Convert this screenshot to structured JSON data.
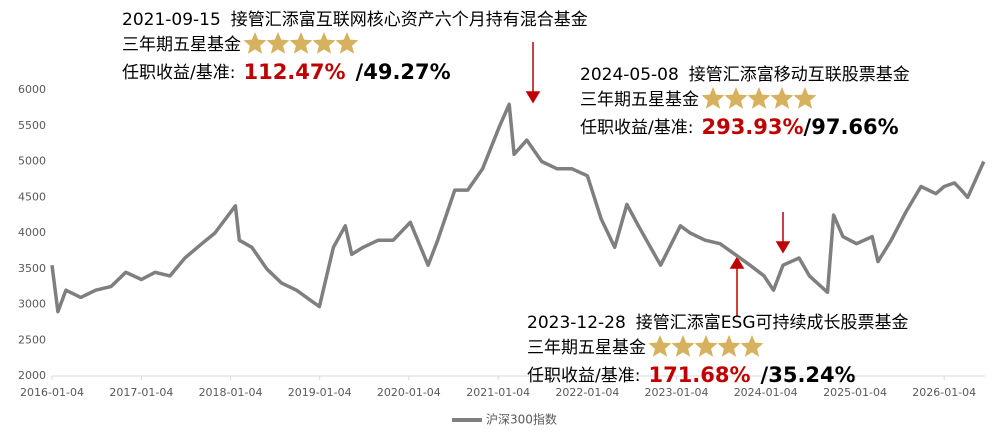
{
  "chart_data": {
    "type": "line",
    "x": [
      "2016-01-04",
      "2016-01-28",
      "2016-03-01",
      "2016-05-01",
      "2016-07-01",
      "2016-09-01",
      "2016-11-01",
      "2017-01-04",
      "2017-03-01",
      "2017-05-01",
      "2017-07-01",
      "2017-09-01",
      "2017-11-01",
      "2018-01-24",
      "2018-02-09",
      "2018-04-01",
      "2018-06-01",
      "2018-08-01",
      "2018-10-01",
      "2018-12-01",
      "2019-01-03",
      "2019-03-01",
      "2019-04-19",
      "2019-05-15",
      "2019-07-01",
      "2019-09-01",
      "2019-11-01",
      "2020-01-10",
      "2020-03-23",
      "2020-05-01",
      "2020-07-10",
      "2020-09-01",
      "2020-11-01",
      "2021-01-10",
      "2021-02-18",
      "2021-03-10",
      "2021-05-01",
      "2021-07-01",
      "2021-09-01",
      "2021-11-01",
      "2022-01-04",
      "2022-03-01",
      "2022-04-26",
      "2022-06-15",
      "2022-08-01",
      "2022-10-31",
      "2023-01-20",
      "2023-03-01",
      "2023-05-01",
      "2023-07-01",
      "2023-09-01",
      "2023-11-01",
      "2023-12-28",
      "2024-02-05",
      "2024-03-15",
      "2024-05-20",
      "2024-07-01",
      "2024-09-13",
      "2024-10-08",
      "2024-11-15",
      "2025-01-10",
      "2025-03-15",
      "2025-04-08",
      "2025-06-01",
      "2025-08-01",
      "2025-10-01",
      "2025-12-01",
      "2026-01-04",
      "2026-02-15",
      "2026-03-15",
      "2026-04-10",
      "2026-06-15"
    ],
    "series": [
      {
        "name": "沪深300指数",
        "color": "#7f7f7f",
        "values": [
          3550,
          2900,
          3200,
          3100,
          3200,
          3250,
          3450,
          3350,
          3450,
          3400,
          3650,
          3830,
          4000,
          4380,
          3900,
          3800,
          3500,
          3300,
          3200,
          3050,
          2970,
          3800,
          4100,
          3700,
          3800,
          3900,
          3900,
          4150,
          3550,
          3900,
          4600,
          4600,
          4900,
          5500,
          5800,
          5100,
          5300,
          5000,
          4900,
          4900,
          4800,
          4200,
          3800,
          4400,
          4100,
          3550,
          4100,
          4000,
          3900,
          3850,
          3700,
          3550,
          3400,
          3200,
          3550,
          3650,
          3400,
          3170,
          4250,
          3950,
          3850,
          3950,
          3600,
          3900,
          4300,
          4650,
          4550,
          4650,
          4700,
          4600,
          4500,
          5000
        ]
      }
    ],
    "xlim": [
      "2016-01-04",
      "2026-06-20"
    ],
    "xticks": [
      "2016-01-04",
      "2017-01-04",
      "2018-01-04",
      "2019-01-04",
      "2020-01-04",
      "2021-01-04",
      "2022-01-04",
      "2023-01-04",
      "2024-01-04",
      "2025-01-04",
      "2026-01-04"
    ],
    "ylim": [
      2000,
      6000
    ],
    "yticks": [
      2000,
      2500,
      3000,
      3500,
      4000,
      4500,
      5000,
      5500,
      6000
    ],
    "annotations": [
      {
        "date": "2021-09-15",
        "fund": "接管汇添富互联网核心资产六个月持有混合基金",
        "rating": "三年期五星基金",
        "return_label": "任职收益/基准:",
        "fund_return": "112.47%",
        "benchmark_return": "/49.27%"
      },
      {
        "date": "2024-05-08",
        "fund": "接管汇添富移动互联股票基金",
        "rating": "三年期五星基金",
        "return_label": "任职收益/基准:",
        "fund_return": "293.93%",
        "benchmark_return": "/97.66%"
      },
      {
        "date": "2023-12-28",
        "fund": "接管汇添富ESG可持续成长股票基金",
        "rating": "三年期五星基金",
        "return_label": "任职收益/基准:",
        "fund_return": "171.68%",
        "benchmark_return": "/35.24%"
      }
    ]
  }
}
